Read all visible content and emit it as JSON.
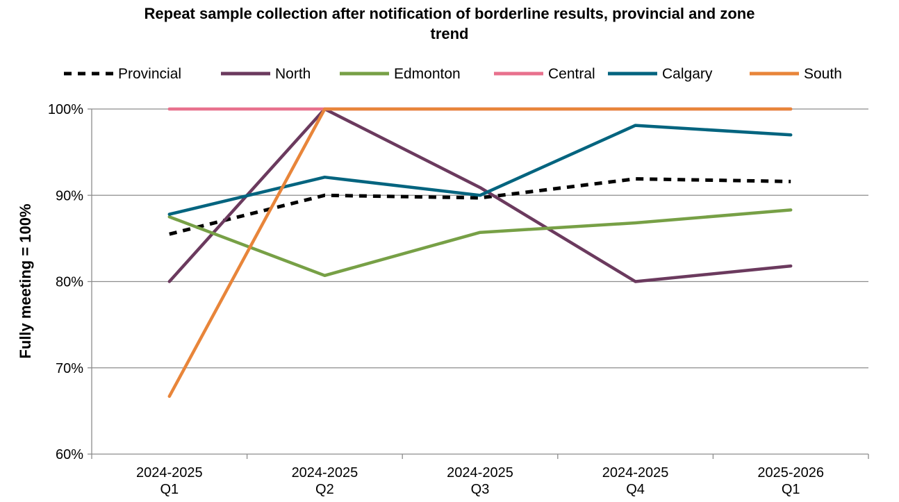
{
  "chart_data": {
    "type": "line",
    "title": "Repeat sample collection after notification of borderline results, provincial and zone\ntrend",
    "xlabel": "",
    "ylabel": "Fully meeting = 100%",
    "categories": [
      [
        "2024-2025",
        "Q1"
      ],
      [
        "2024-2025",
        "Q2"
      ],
      [
        "2024-2025",
        "Q3"
      ],
      [
        "2024-2025",
        "Q4"
      ],
      [
        "2025-2026",
        "Q1"
      ]
    ],
    "ylim": [
      60,
      100
    ],
    "yticks": [
      "60%",
      "70%",
      "80%",
      "90%",
      "100%"
    ],
    "ytick_values": [
      60,
      70,
      80,
      90,
      100
    ],
    "grid": true,
    "legend_position": "top",
    "series": [
      {
        "name": "Provincial",
        "values": [
          85.5,
          90.0,
          89.7,
          91.9,
          91.6
        ],
        "color": "#000000",
        "dashed": true
      },
      {
        "name": "North",
        "values": [
          80.0,
          100.0,
          90.9,
          80.0,
          81.8
        ],
        "color": "#6b3a5e",
        "dashed": false
      },
      {
        "name": "Edmonton",
        "values": [
          87.5,
          80.7,
          85.7,
          86.8,
          88.3
        ],
        "color": "#77a046",
        "dashed": false
      },
      {
        "name": "Central",
        "values": [
          100.0,
          100.0,
          100.0,
          100.0,
          100.0
        ],
        "color": "#e8718d",
        "dashed": false
      },
      {
        "name": "Calgary",
        "values": [
          87.8,
          92.1,
          90.0,
          98.1,
          97.0
        ],
        "color": "#03647f",
        "dashed": false
      },
      {
        "name": "South",
        "values": [
          66.7,
          100.0,
          100.0,
          100.0,
          100.0
        ],
        "color": "#e8853a",
        "dashed": false
      }
    ]
  }
}
